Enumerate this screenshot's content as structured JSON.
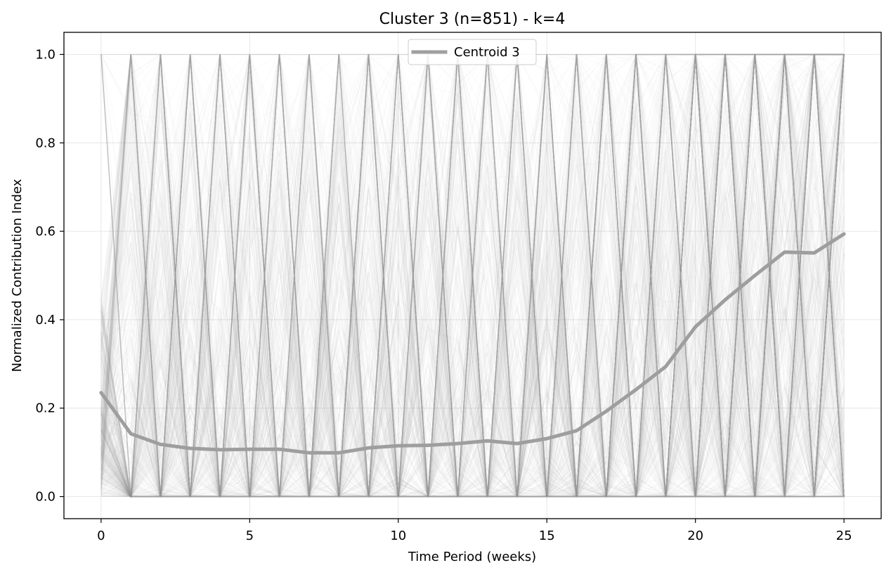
{
  "chart_data": {
    "type": "line",
    "title": "Cluster 3 (n=851) - k=4",
    "xlabel": "Time Period (weeks)",
    "ylabel": "Normalized Contribution Index",
    "xlim": [
      -1.25,
      26.25
    ],
    "ylim": [
      -0.05,
      1.05
    ],
    "x_ticks": [
      0,
      5,
      10,
      15,
      20,
      25
    ],
    "x_tick_labels": [
      "0",
      "5",
      "10",
      "15",
      "20",
      "25"
    ],
    "y_ticks": [
      0.0,
      0.2,
      0.4,
      0.6,
      0.8,
      1.0
    ],
    "y_tick_labels": [
      "0.0",
      "0.2",
      "0.4",
      "0.6",
      "0.8",
      "1.0"
    ],
    "grid": true,
    "legend_position": "top-center",
    "background_trajectories": {
      "count": 851,
      "color": "#9e9e9e"
    },
    "series": [
      {
        "name": "Centroid 3",
        "color": "#9e9e9e",
        "x": [
          0,
          1,
          2,
          3,
          4,
          5,
          6,
          7,
          8,
          9,
          10,
          11,
          12,
          13,
          14,
          15,
          16,
          17,
          18,
          19,
          20,
          21,
          22,
          23,
          24,
          25
        ],
        "values": [
          0.235,
          0.142,
          0.118,
          0.109,
          0.106,
          0.107,
          0.107,
          0.099,
          0.099,
          0.11,
          0.115,
          0.116,
          0.12,
          0.126,
          0.12,
          0.131,
          0.149,
          0.193,
          0.242,
          0.294,
          0.384,
          0.445,
          0.5,
          0.553,
          0.551,
          0.594
        ]
      }
    ]
  }
}
